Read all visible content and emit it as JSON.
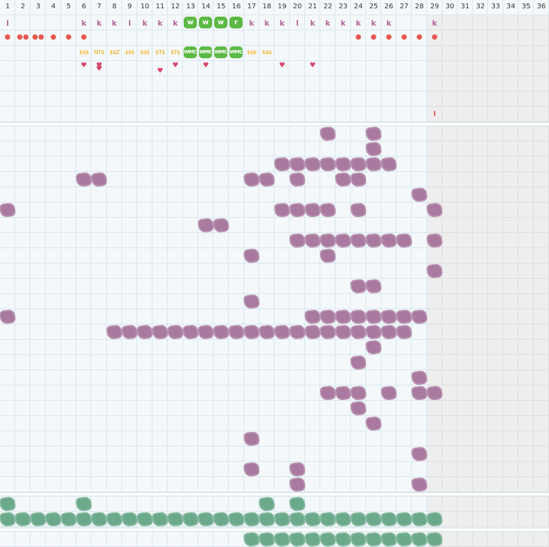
{
  "day_numbers": [
    "1",
    "2",
    "3",
    "4",
    "5",
    "6",
    "7",
    "8",
    "9",
    "10",
    "11",
    "12",
    "13",
    "14",
    "15",
    "16",
    "17",
    "18",
    "19",
    "20",
    "21",
    "22",
    "23",
    "24",
    "25",
    "26",
    "27",
    "28",
    "29",
    "30",
    "31",
    "32",
    "33",
    "34",
    "35",
    "36"
  ],
  "active_columns": 28,
  "colors": {
    "purple": "#a9799f",
    "green": "#6aa989",
    "pill": "#5cb944",
    "letter": "#b5649a",
    "drop": "#e8574f",
    "money": "#f0a500",
    "heart": "#d9466b",
    "disabled": "#eeeeee"
  },
  "letter_row": [
    {
      "day": 1,
      "text": "l"
    },
    {
      "day": 6,
      "text": "k"
    },
    {
      "day": 7,
      "text": "k"
    },
    {
      "day": 8,
      "text": "k"
    },
    {
      "day": 9,
      "text": "l"
    },
    {
      "day": 10,
      "text": "k"
    },
    {
      "day": 11,
      "text": "k"
    },
    {
      "day": 12,
      "text": "k"
    },
    {
      "day": 17,
      "text": "k"
    },
    {
      "day": 18,
      "text": "k"
    },
    {
      "day": 19,
      "text": "k"
    },
    {
      "day": 20,
      "text": "l"
    },
    {
      "day": 21,
      "text": "k"
    },
    {
      "day": 22,
      "text": "k"
    },
    {
      "day": 23,
      "text": "k"
    },
    {
      "day": 24,
      "text": "k"
    },
    {
      "day": 25,
      "text": "k"
    },
    {
      "day": 26,
      "text": "k"
    },
    {
      "day": 29,
      "text": "k"
    }
  ],
  "pills": [
    {
      "day": 13,
      "text": "w"
    },
    {
      "day": 14,
      "text": "w"
    },
    {
      "day": 15,
      "text": "w"
    },
    {
      "day": 16,
      "text": "r"
    }
  ],
  "drop_row": [
    {
      "day": 1,
      "text": "●"
    },
    {
      "day": 2,
      "text": "●●"
    },
    {
      "day": 3,
      "text": "●●"
    },
    {
      "day": 4,
      "text": "●"
    },
    {
      "day": 5,
      "text": "●"
    },
    {
      "day": 6,
      "text": "●"
    },
    {
      "day": 24,
      "text": "●"
    },
    {
      "day": 25,
      "text": "●"
    },
    {
      "day": 26,
      "text": "●"
    },
    {
      "day": 27,
      "text": "●"
    },
    {
      "day": 28,
      "text": "●"
    },
    {
      "day": 29,
      "text": "●"
    }
  ],
  "money_row": [
    {
      "day": 6,
      "text": "$$$"
    },
    {
      "day": 7,
      "text": "NT$"
    },
    {
      "day": 8,
      "text": "$$Z"
    },
    {
      "day": 9,
      "text": "$$$"
    },
    {
      "day": 10,
      "text": "$$$"
    },
    {
      "day": 11,
      "text": "$T$"
    },
    {
      "day": 12,
      "text": "$T$"
    },
    {
      "day": 17,
      "text": "$$$"
    },
    {
      "day": 18,
      "text": "$$$"
    }
  ],
  "money_pills": [
    {
      "day": 13,
      "text": "WMC"
    },
    {
      "day": 14,
      "text": "WMC"
    },
    {
      "day": 15,
      "text": "WMC"
    },
    {
      "day": 16,
      "text": "WMC"
    }
  ],
  "hearts": [
    {
      "day": 6,
      "offset": 0
    },
    {
      "day": 7,
      "offset": 0
    },
    {
      "day": 7,
      "offset": 5
    },
    {
      "day": 11,
      "offset": 8
    },
    {
      "day": 12,
      "offset": 0
    },
    {
      "day": 14,
      "offset": 0
    },
    {
      "day": 19,
      "offset": 0
    },
    {
      "day": 21,
      "offset": 0
    }
  ],
  "tick_day": 29,
  "purple_rows": [
    [
      22,
      25
    ],
    [
      25
    ],
    [
      19,
      20,
      21,
      22,
      23,
      24,
      25,
      26
    ],
    [
      6,
      7,
      17,
      18,
      20,
      23,
      24
    ],
    [
      28
    ],
    [
      1,
      19,
      20,
      21,
      22,
      24,
      29
    ],
    [
      14,
      15
    ],
    [
      20,
      21,
      22,
      23,
      24,
      25,
      26,
      27,
      29
    ],
    [
      17,
      22
    ],
    [
      29
    ],
    [
      24,
      25
    ],
    [
      17
    ],
    [
      1,
      21,
      22,
      23,
      24,
      25,
      26,
      27,
      28
    ],
    [
      8,
      9,
      10,
      11,
      12,
      13,
      14,
      15,
      16,
      17,
      18,
      19,
      20,
      21,
      22,
      23,
      24,
      25,
      26,
      27
    ],
    [
      25
    ],
    [
      24
    ],
    [
      28
    ],
    [
      22,
      23,
      24,
      26,
      28,
      29
    ],
    [
      24
    ],
    [
      25
    ],
    [
      17
    ],
    [
      28
    ],
    [
      17,
      20
    ],
    [
      20,
      28
    ]
  ],
  "green_rows": [
    [
      1,
      6,
      18,
      20
    ],
    [
      1,
      2,
      3,
      4,
      5,
      6,
      7,
      8,
      9,
      10,
      11,
      12,
      13,
      14,
      15,
      16,
      17,
      18,
      19,
      20,
      21,
      22,
      23,
      24,
      25,
      26,
      27,
      28,
      29
    ]
  ],
  "green_bottom_row": [
    17,
    18,
    19,
    20,
    21,
    22,
    23,
    24,
    25,
    26,
    27,
    28,
    29
  ]
}
